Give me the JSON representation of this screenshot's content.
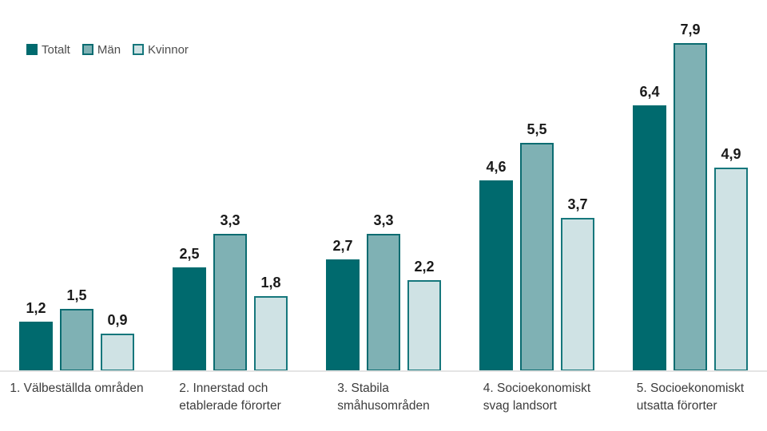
{
  "chart_data": {
    "type": "bar",
    "categories": [
      "1. Välbeställda områden",
      "2. Innerstad och\netablerade förorter",
      "3. Stabila\nsmåhusområden",
      "4. Socioekonomiskt\nsvag landsort",
      "5. Socioekonomiskt\nutsatta förorter"
    ],
    "series": [
      {
        "name": "Totalt",
        "values": [
          1.2,
          2.5,
          2.7,
          4.6,
          6.4
        ],
        "fill": "#006a6e",
        "border": null
      },
      {
        "name": "Män",
        "values": [
          1.5,
          3.3,
          3.3,
          5.5,
          7.9
        ],
        "fill": "#7fb1b4",
        "border": "#0b6c71"
      },
      {
        "name": "Kvinnor",
        "values": [
          0.9,
          1.8,
          2.2,
          3.7,
          4.9
        ],
        "fill": "#cfe2e4",
        "border": "#16777c"
      }
    ],
    "title": "",
    "xlabel": "",
    "ylabel": "",
    "ylim": [
      0,
      8
    ],
    "grid": false,
    "legend_position": "top-left",
    "value_labels": "above-bars",
    "decimal_separator": ","
  },
  "colors": {
    "value_label": "#1a1a1a",
    "category_label": "#3c3c3c",
    "legend_label": "#4d4d4d",
    "axis_line": "#e4e4e4",
    "background": "#ffffff"
  }
}
